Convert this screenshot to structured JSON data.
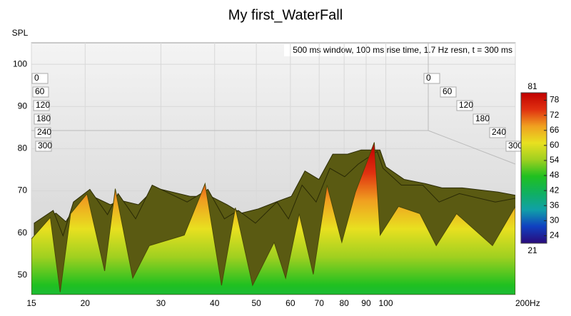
{
  "chart_data": {
    "type": "waterfall",
    "title": "My first_WaterFall",
    "y_label": "SPL",
    "annotation": "500 ms window, 100 ms rise time,  1.7 Hz resn, t = 300 ms",
    "x": [
      15,
      16.6,
      17.5,
      18.5,
      20.2,
      22.2,
      23.5,
      25.8,
      28.2,
      34,
      38,
      41.5,
      44.7,
      49,
      55,
      58.5,
      62.9,
      67.8,
      73,
      79,
      85,
      94,
      97,
      107,
      120,
      131,
      146,
      177,
      200
    ],
    "slices": [
      [
        58.6,
        63.7,
        46,
        64.6,
        69.3,
        51,
        70.5,
        49.3,
        57,
        59.5,
        71.7,
        47.6,
        66,
        47.6,
        57.8,
        49.3,
        64.6,
        50.2,
        71.4,
        57.8,
        69.7,
        81.5,
        59.5,
        66.3,
        64.6,
        57,
        64.6,
        57,
        66.3
      ],
      [
        61,
        64,
        58,
        66,
        69,
        63,
        68,
        62,
        70,
        66,
        69,
        62,
        64,
        61,
        66,
        62,
        70,
        66,
        74,
        72,
        75,
        78,
        74,
        70,
        70,
        66,
        68,
        66,
        67
      ],
      [
        60,
        62,
        60,
        64,
        66,
        64,
        65,
        64,
        68,
        66,
        66,
        64,
        62,
        63,
        65,
        66,
        72,
        70,
        76,
        76,
        77,
        77,
        73,
        70,
        69,
        68,
        68,
        67,
        66
      ]
    ],
    "times": [
      0,
      60,
      120,
      180,
      240,
      300
    ],
    "xlim": [
      15,
      200
    ],
    "log_x": true,
    "xticks": [
      15,
      20,
      30,
      40,
      50,
      60,
      70,
      80,
      90,
      100,
      {
        "value": 200,
        "label": "200Hz"
      }
    ],
    "ylim": [
      45.4,
      105.1
    ],
    "yticks": [
      50,
      60,
      70,
      80,
      90,
      100
    ],
    "grid": true,
    "colorbar_ticks": [
      81,
      78,
      72,
      66,
      60,
      54,
      48,
      42,
      36,
      30,
      24,
      21
    ],
    "colorbar_colors": [
      "#2a0a7a",
      "#1040c0",
      "#10a0a8",
      "#10b060",
      "#20c020",
      "#a0d020",
      "#e8e020",
      "#f0a020",
      "#e03010",
      "#c00000"
    ],
    "back_color": "#5a5a12"
  }
}
